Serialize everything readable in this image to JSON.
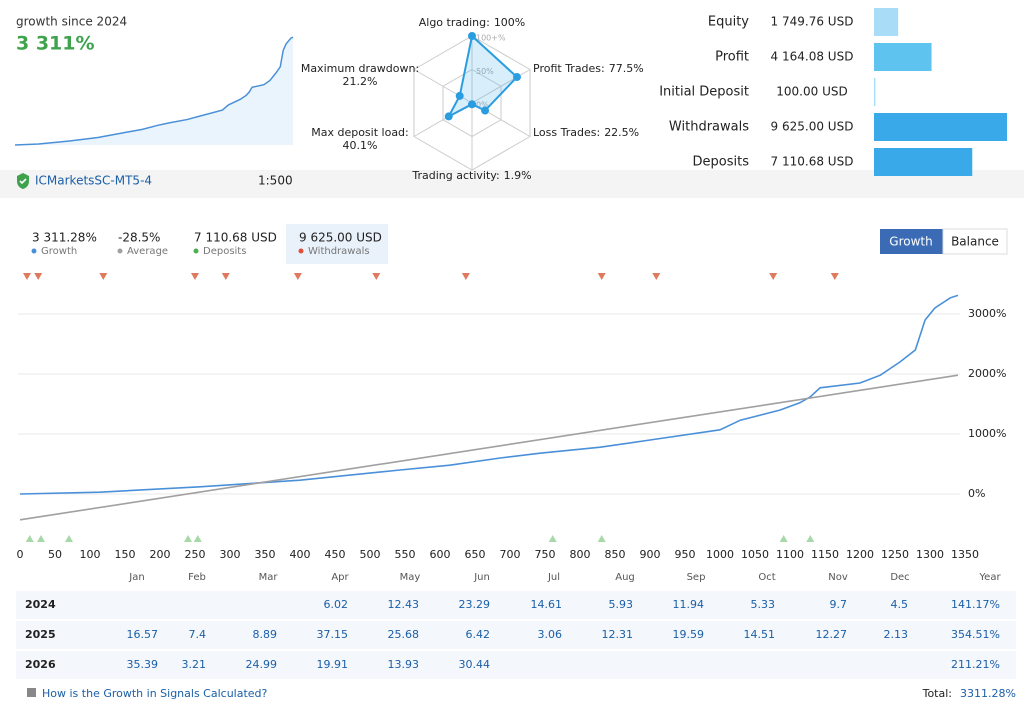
{
  "header": {
    "growth_label": "growth since 2024",
    "growth_value": "3 311%"
  },
  "account": {
    "server": "ICMarketsSC-MT5-4",
    "leverage": "1:500"
  },
  "summary": [
    {
      "value": "3 311.28%",
      "label": "Growth",
      "color": "#4a90d9"
    },
    {
      "value": "-28.5%",
      "label": "Average",
      "color": "#a0a0a0"
    },
    {
      "value": "7 110.68 USD",
      "label": "Deposits",
      "color": "#4caf50"
    },
    {
      "value": "9 625.00 USD",
      "label": "Withdrawals",
      "color": "#e0533b"
    }
  ],
  "buttons": [
    "Growth",
    "Balance"
  ],
  "chart_data": [
    {
      "type": "radar",
      "categories": [
        "Algo trading:",
        "Profit Trades:",
        "Loss Trades:",
        "Trading activity:",
        "Max deposit load:",
        "Maximum drawdown:"
      ],
      "values": [
        100,
        77.5,
        22.5,
        1.9,
        40.1,
        21.2
      ],
      "value_labels": [
        "100%",
        "77.5%",
        "22.5%",
        "1.9%",
        "40.1%",
        "21.2%"
      ],
      "rlim": [
        0,
        100
      ],
      "rticks": [
        {
          "value": 0,
          "label": "0%"
        },
        {
          "value": 50,
          "label": "50%"
        },
        {
          "value": 100,
          "label": "100+%"
        }
      ],
      "color": "#2a9de0"
    },
    {
      "type": "hbar",
      "categories": [
        "Equity",
        "Profit",
        "Initial Deposit",
        "Withdrawals",
        "Deposits"
      ],
      "values": [
        1749.76,
        4164.08,
        100,
        9625,
        7110.68
      ],
      "value_labels": [
        "1 749.76 USD",
        "4 164.08 USD",
        "100.00 USD",
        "9 625.00 USD",
        "7 110.68 USD"
      ],
      "colors": [
        "#a8dcf7",
        "#5fc3f0",
        "#a8dcf7",
        "#3aa9ea",
        "#3aa9ea"
      ],
      "xlim": [
        0,
        9625
      ]
    },
    {
      "type": "line",
      "xlim": [
        0,
        1350
      ],
      "ylim": [
        -850,
        3400
      ],
      "xticks": [
        0,
        50,
        100,
        150,
        200,
        250,
        300,
        350,
        400,
        450,
        500,
        550,
        600,
        650,
        700,
        750,
        800,
        850,
        900,
        950,
        1000,
        1050,
        1100,
        1150,
        1200,
        1250,
        1300,
        1350
      ],
      "yticks": [
        {
          "value": 0,
          "label": "0%"
        },
        {
          "value": 1000,
          "label": "1000%"
        },
        {
          "value": 2000,
          "label": "2000%"
        },
        {
          "value": 3000,
          "label": "3000%"
        }
      ],
      "grid": true,
      "series": [
        {
          "color": "#4a90d9",
          "x": [
            0,
            114,
            257,
            400,
            543,
            614,
            686,
            743,
            829,
            900,
            1000,
            1029,
            1086,
            1114,
            1129,
            1143,
            1200,
            1229,
            1257,
            1279,
            1293,
            1307,
            1329,
            1340
          ],
          "values": [
            0,
            30,
            120,
            230,
            400,
            480,
            600,
            680,
            780,
            900,
            1070,
            1230,
            1400,
            1520,
            1620,
            1770,
            1850,
            1980,
            2200,
            2400,
            2900,
            3100,
            3270,
            3311
          ]
        },
        {
          "color": "#a0a0a0",
          "x": [
            0,
            1340
          ],
          "values": [
            -430,
            1980
          ]
        }
      ],
      "withdrawal_markers": {
        "color": "#e07a5f",
        "x": [
          10,
          26,
          119,
          250,
          294,
          397,
          509,
          637,
          831,
          909,
          1076,
          1164
        ]
      },
      "deposit_markers": {
        "color": "#a8d8a8",
        "x": [
          14,
          30,
          70,
          240,
          254,
          761,
          831,
          1091,
          1129
        ]
      }
    }
  ],
  "table": {
    "header": [
      "Jan",
      "Feb",
      "Mar",
      "Apr",
      "May",
      "Jun",
      "Jul",
      "Aug",
      "Sep",
      "Oct",
      "Nov",
      "Dec",
      "Year"
    ],
    "rows": [
      {
        "year": "2024",
        "cells": [
          null,
          null,
          null,
          "6.02",
          "12.43",
          "23.29",
          "14.61",
          "5.93",
          "11.94",
          "5.33",
          "9.7",
          "4.5",
          "141.17%"
        ]
      },
      {
        "year": "2025",
        "cells": [
          "16.57",
          "7.4",
          "8.89",
          "37.15",
          "25.68",
          "6.42",
          "3.06",
          "12.31",
          "19.59",
          "14.51",
          "12.27",
          "2.13",
          "354.51%"
        ]
      },
      {
        "year": "2026",
        "cells": [
          "35.39",
          "3.21",
          "24.99",
          "19.91",
          "13.93",
          "30.44",
          null,
          null,
          null,
          null,
          null,
          null,
          "211.21%"
        ]
      }
    ]
  },
  "footer": {
    "link": "How is the Growth in Signals Calculated?",
    "total_label": "Total:",
    "total_value": "3311.28%"
  }
}
